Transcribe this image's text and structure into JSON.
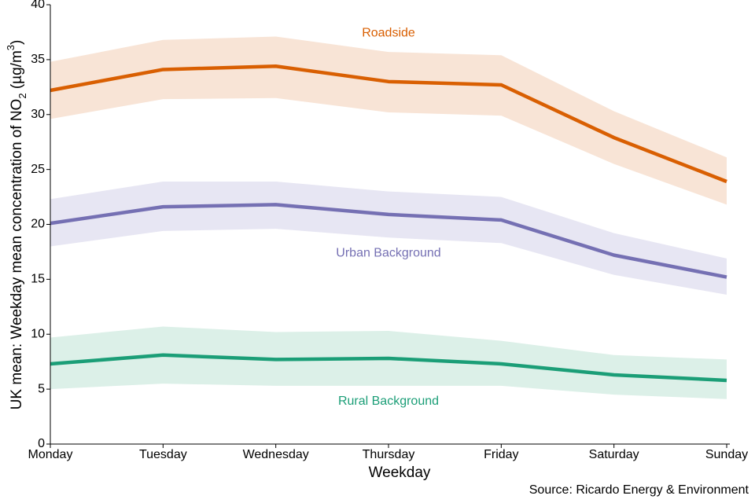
{
  "chart_data": {
    "type": "band-line",
    "y_label": [
      "UK mean: Weekday mean concentration of NO",
      "2",
      " (µg/m",
      "3",
      ")"
    ],
    "x_label": "Weekday",
    "source": "Source: Ricardo Energy & Environment",
    "categories": [
      "Monday",
      "Tuesday",
      "Wednesday",
      "Thursday",
      "Friday",
      "Saturday",
      "Sunday"
    ],
    "ylim": [
      0,
      40
    ],
    "yticks": [
      0,
      5,
      10,
      15,
      20,
      25,
      30,
      35,
      40
    ],
    "series": [
      {
        "name": "Roadside",
        "color": "#d95f02",
        "band_color": "#f8e4d6",
        "values": [
          32.2,
          34.1,
          34.4,
          33.0,
          32.7,
          27.9,
          23.9
        ],
        "upper": [
          34.8,
          36.8,
          37.1,
          35.7,
          35.4,
          30.3,
          26.1
        ],
        "lower": [
          29.6,
          31.4,
          31.5,
          30.2,
          29.9,
          25.5,
          21.8
        ]
      },
      {
        "name": "Urban Background",
        "color": "#7570b3",
        "band_color": "#e7e6f3",
        "values": [
          20.1,
          21.6,
          21.8,
          20.9,
          20.4,
          17.2,
          15.2
        ],
        "upper": [
          22.3,
          23.9,
          23.9,
          23.0,
          22.5,
          19.2,
          16.9
        ],
        "lower": [
          18.0,
          19.4,
          19.6,
          18.8,
          18.3,
          15.4,
          13.6
        ]
      },
      {
        "name": "Rural Background",
        "color": "#1b9e77",
        "band_color": "#dcf0e8",
        "values": [
          7.3,
          8.1,
          7.7,
          7.8,
          7.3,
          6.3,
          5.8
        ],
        "upper": [
          9.7,
          10.7,
          10.2,
          10.3,
          9.4,
          8.1,
          7.7
        ],
        "lower": [
          5.0,
          5.5,
          5.3,
          5.3,
          5.3,
          4.5,
          4.1
        ]
      }
    ]
  }
}
